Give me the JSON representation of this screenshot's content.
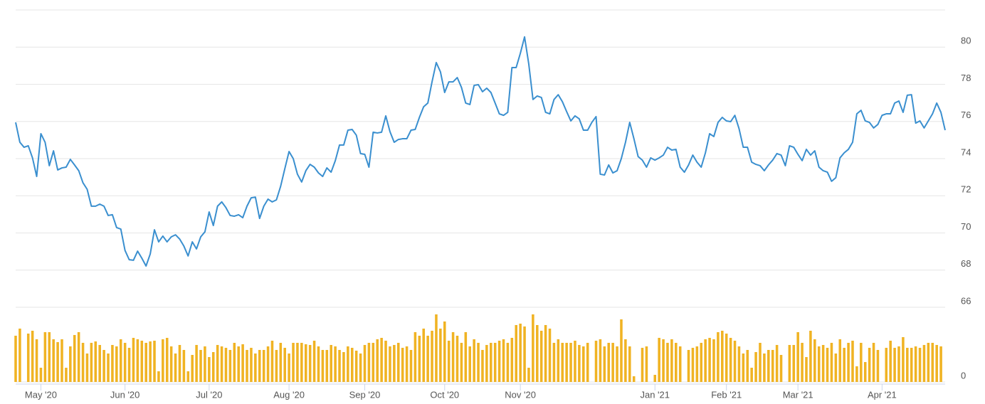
{
  "chart_data": [
    {
      "type": "line",
      "color": "#3a8fcf",
      "ylim": [
        66,
        82
      ],
      "yticks": [
        66,
        68,
        70,
        72,
        74,
        76,
        78,
        80
      ],
      "grid": true,
      "categories": [
        null,
        null,
        null,
        null,
        null,
        null,
        "May '20",
        null,
        null,
        null,
        null,
        null,
        null,
        null,
        null,
        null,
        null,
        null,
        null,
        null,
        null,
        null,
        null,
        null,
        null,
        null,
        "Jun '20",
        null,
        null,
        null,
        null,
        null,
        null,
        null,
        null,
        null,
        null,
        null,
        null,
        null,
        null,
        null,
        null,
        null,
        null,
        null,
        "Jul '20",
        null,
        null,
        null,
        null,
        null,
        null,
        null,
        null,
        null,
        null,
        null,
        null,
        null,
        null,
        null,
        null,
        null,
        null,
        "Aug '20",
        null,
        null,
        null,
        null,
        null,
        null,
        null,
        null,
        null,
        null,
        null,
        null,
        null,
        null,
        null,
        null,
        null,
        "Sep '20",
        null,
        null,
        null,
        null,
        null,
        null,
        null,
        null,
        null,
        null,
        null,
        null,
        null,
        null,
        null,
        null,
        null,
        null,
        "Oct '20",
        null,
        null,
        null,
        null,
        null,
        null,
        null,
        null,
        null,
        null,
        null,
        null,
        null,
        null,
        null,
        null,
        null,
        "Nov '20",
        null,
        null,
        null,
        null,
        null,
        null,
        null,
        null,
        null,
        null,
        null,
        null,
        null,
        null,
        null,
        null,
        null,
        null,
        null,
        null,
        null,
        null,
        null,
        null,
        null,
        null,
        null,
        null,
        null,
        null,
        null,
        "Jan '21",
        null,
        null,
        null,
        null,
        null,
        null,
        null,
        null,
        null,
        null,
        null,
        null,
        null,
        null,
        null,
        null,
        "Feb '21",
        null,
        null,
        null,
        null,
        null,
        null,
        null,
        null,
        null,
        null,
        null,
        null,
        null,
        null,
        null,
        null,
        "Mar '21",
        null,
        null,
        null,
        null,
        null,
        null,
        null,
        null,
        null,
        null,
        null,
        null,
        null,
        null,
        null,
        null,
        null,
        null,
        null,
        "Apr '21",
        null,
        null,
        null,
        null,
        null,
        null,
        null,
        null,
        null,
        null,
        null,
        null,
        null,
        null,
        null
      ],
      "values": [
        75.95,
        74.88,
        74.61,
        74.69,
        74.04,
        73.04,
        75.34,
        74.88,
        73.62,
        74.42,
        73.39,
        73.5,
        73.54,
        73.96,
        73.66,
        73.35,
        72.7,
        72.35,
        71.44,
        71.44,
        71.55,
        71.44,
        70.94,
        70.98,
        70.29,
        70.21,
        69.06,
        68.56,
        68.53,
        69.02,
        68.64,
        68.22,
        68.87,
        70.17,
        69.52,
        69.83,
        69.52,
        69.79,
        69.9,
        69.67,
        69.29,
        68.76,
        69.52,
        69.14,
        69.79,
        70.06,
        71.13,
        70.4,
        71.44,
        71.67,
        71.36,
        70.94,
        70.9,
        70.98,
        70.82,
        71.44,
        71.89,
        71.93,
        70.78,
        71.44,
        71.82,
        71.67,
        71.78,
        72.51,
        73.46,
        74.38,
        74.0,
        73.16,
        72.74,
        73.35,
        73.69,
        73.54,
        73.23,
        73.04,
        73.5,
        73.27,
        73.89,
        74.73,
        74.73,
        75.53,
        75.57,
        75.26,
        74.27,
        74.23,
        73.54,
        75.42,
        75.38,
        75.42,
        76.3,
        75.45,
        74.88,
        75.03,
        75.07,
        75.07,
        75.53,
        75.57,
        76.22,
        76.79,
        76.99,
        78.13,
        79.17,
        78.67,
        77.56,
        78.13,
        78.13,
        78.36,
        77.83,
        76.99,
        76.91,
        77.94,
        77.98,
        77.6,
        77.79,
        77.56,
        76.99,
        76.41,
        76.33,
        76.49,
        78.9,
        78.9,
        79.67,
        80.55,
        79.09,
        77.18,
        77.37,
        77.29,
        76.49,
        76.41,
        77.18,
        77.44,
        77.06,
        76.53,
        76.03,
        76.3,
        76.14,
        75.53,
        75.53,
        75.95,
        76.26,
        73.16,
        73.12,
        73.66,
        73.23,
        73.35,
        74.0,
        74.88,
        75.95,
        75.07,
        74.11,
        73.92,
        73.54,
        74.04,
        73.92,
        74.04,
        74.19,
        74.61,
        74.46,
        74.5,
        73.54,
        73.27,
        73.66,
        74.19,
        73.81,
        73.54,
        74.31,
        75.34,
        75.19,
        75.95,
        76.22,
        76.03,
        75.99,
        76.33,
        75.61,
        74.61,
        74.61,
        73.81,
        73.69,
        73.62,
        73.35,
        73.66,
        73.92,
        74.27,
        74.19,
        73.62,
        74.69,
        74.61,
        74.23,
        73.89,
        74.5,
        74.19,
        74.42,
        73.54,
        73.35,
        73.27,
        72.78,
        72.97,
        74.04,
        74.31,
        74.5,
        74.88,
        76.41,
        76.6,
        76.03,
        75.95,
        75.65,
        75.84,
        76.33,
        76.41,
        76.41,
        76.99,
        77.1,
        76.49,
        77.41,
        77.44,
        75.91,
        76.03,
        75.65,
        76.03,
        76.41,
        76.99,
        76.49,
        75.53
      ]
    },
    {
      "type": "bar",
      "color": "#f0b323",
      "ylim": [
        0,
        100
      ],
      "yticks": [
        0
      ],
      "grid": true,
      "values": [
        65,
        75,
        0,
        68,
        72,
        60,
        20,
        70,
        70,
        60,
        56,
        60,
        20,
        50,
        66,
        70,
        55,
        40,
        55,
        57,
        52,
        45,
        40,
        52,
        50,
        60,
        55,
        48,
        62,
        60,
        58,
        55,
        57,
        58,
        15,
        60,
        62,
        50,
        40,
        52,
        45,
        15,
        38,
        52,
        45,
        50,
        35,
        42,
        52,
        50,
        48,
        45,
        55,
        50,
        53,
        45,
        48,
        40,
        45,
        45,
        50,
        58,
        45,
        55,
        48,
        40,
        55,
        55,
        55,
        53,
        52,
        58,
        50,
        45,
        45,
        52,
        50,
        45,
        42,
        50,
        48,
        44,
        40,
        52,
        55,
        55,
        60,
        62,
        58,
        50,
        52,
        55,
        48,
        50,
        45,
        70,
        65,
        75,
        65,
        72,
        95,
        75,
        85,
        58,
        70,
        65,
        55,
        70,
        50,
        60,
        55,
        45,
        52,
        55,
        55,
        58,
        60,
        55,
        62,
        80,
        82,
        78,
        20,
        95,
        80,
        72,
        80,
        75,
        55,
        60,
        55,
        55,
        55,
        58,
        52,
        50,
        55,
        0,
        58,
        60,
        50,
        55,
        55,
        50,
        88,
        60,
        50,
        8,
        0,
        48,
        50,
        0,
        10,
        62,
        60,
        55,
        60,
        55,
        50,
        0,
        45,
        48,
        50,
        55,
        60,
        62,
        60,
        70,
        72,
        68,
        62,
        58,
        50,
        40,
        45,
        20,
        42,
        55,
        40,
        45,
        45,
        52,
        38,
        0,
        52,
        52,
        70,
        55,
        35,
        72,
        60,
        50,
        52,
        48,
        55,
        40,
        60,
        48,
        55,
        58,
        22,
        55,
        28,
        48,
        55,
        45,
        0,
        48,
        58,
        48,
        50,
        63,
        48,
        48,
        50,
        48,
        52,
        55,
        55,
        52,
        50,
        0
      ]
    }
  ]
}
